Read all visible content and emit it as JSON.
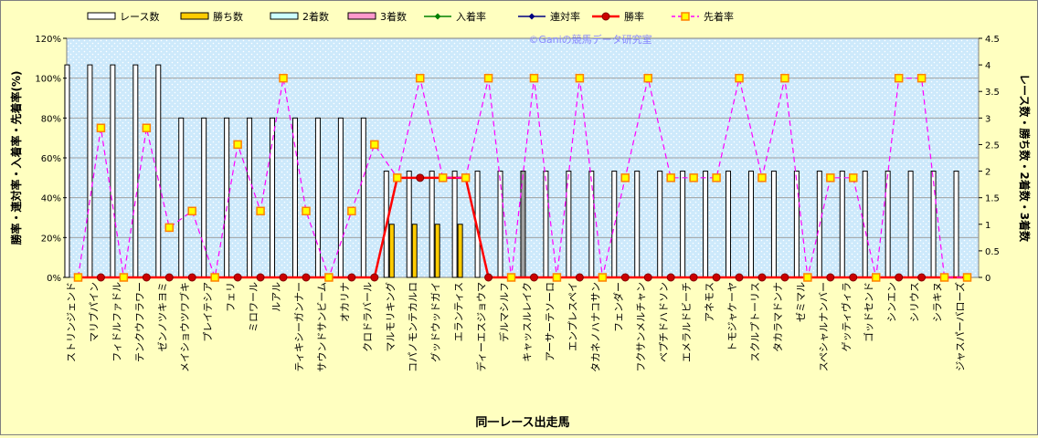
{
  "watermark": "©Ganiの競馬データ研究室",
  "chart_data": {
    "type": "bar",
    "xlabel": "同一レース出走馬",
    "ylabel_left": "勝率・連対率・入着率・先着率(%)",
    "ylabel_right": "レース数・勝ち数・2着数・3着数",
    "ylim_left": [
      0,
      120
    ],
    "yticks_left": [
      "0%",
      "20%",
      "40%",
      "60%",
      "80%",
      "100%",
      "120%"
    ],
    "ylim_right": [
      0,
      4.5
    ],
    "yticks_right": [
      "0",
      "0.5",
      "1",
      "1.5",
      "2",
      "2.5",
      "3",
      "3.5",
      "4",
      "4.5"
    ],
    "grid": true,
    "legend_position": "top",
    "colors": {
      "races": "#ffffff",
      "wins": "#ffcc00",
      "second": "#ccffff",
      "third": "#ff99cc",
      "place_rate": "#008000",
      "quinella_rate": "#000080",
      "win_rate": "#ff0000",
      "win_rate_marker": "#cc0000",
      "lead_rate": "#ff00ff",
      "lead_marker_fill": "#ffff00",
      "lead_marker_edge": "#ff8000",
      "plot_bg": "#ccecff"
    },
    "categories": [
      "ストリンジェンド",
      "マリブパイン",
      "フィドルファドル",
      "テンクウフラワー",
      "ゼンノツキヨミ",
      "メイショウツワブキ",
      "プレイテシア",
      "フェリ",
      "ミロワール",
      "ルアル",
      "ティキシーガンナー",
      "サウンドサンビーム",
      "オカリナ",
      "クロドラバール",
      "マルモリキング",
      "コパノモンテカルロ",
      "グッドウッドガイ",
      "エランティス",
      "ディーエスジョウマ",
      "デルマシルフ",
      "キャッスルレイク",
      "アーサーテソーロ",
      "エンプレスペイ",
      "タカネノハナコサン",
      "フェンダー",
      "フクサンメルチャン",
      "ベプチドハドソン",
      "エメラルドビーチ",
      "アネモス",
      "トモジャケーヤ",
      "スクルプトーリス",
      "タカラマドンナ",
      "ゼミマル",
      "スペシャルナンバー",
      "ゲッティヴィラ",
      "ゴッドセンド",
      "シンエン",
      "シリウス",
      "シラキヌ",
      "ジャスパーバローズ"
    ],
    "series": [
      {
        "name": "レース数",
        "axis": "right",
        "kind": "bar",
        "values": [
          4,
          4,
          4,
          4,
          4,
          3,
          3,
          3,
          3,
          3,
          3,
          3,
          3,
          3,
          2,
          2,
          2,
          2,
          2,
          2,
          2,
          2,
          2,
          2,
          2,
          2,
          2,
          2,
          2,
          2,
          2,
          2,
          2,
          2,
          2,
          2,
          2,
          2,
          2,
          2
        ]
      },
      {
        "name": "勝ち数",
        "axis": "right",
        "kind": "bar",
        "values": [
          0,
          0,
          0,
          0,
          0,
          0,
          0,
          0,
          0,
          0,
          0,
          0,
          0,
          0,
          1,
          1,
          1,
          1,
          0,
          0,
          0,
          0,
          0,
          0,
          0,
          0,
          0,
          0,
          0,
          0,
          0,
          0,
          0,
          0,
          0,
          0,
          0,
          0,
          0,
          0
        ]
      },
      {
        "name": "2着数",
        "axis": "right",
        "kind": "bar",
        "values": [
          0,
          0,
          0,
          0,
          0,
          0,
          0,
          0,
          0,
          0,
          0,
          0,
          0,
          0,
          0,
          0,
          0,
          0,
          0,
          0,
          0,
          0,
          0,
          0,
          0,
          0,
          0,
          0,
          0,
          0,
          0,
          0,
          0,
          0,
          0,
          0,
          0,
          0,
          0,
          0
        ]
      },
      {
        "name": "3着数",
        "axis": "right",
        "kind": "bar",
        "values": [
          0,
          0,
          0,
          0,
          0,
          0,
          0,
          0,
          0,
          0,
          0,
          0,
          0,
          0,
          0,
          0,
          0,
          0,
          0,
          0,
          0,
          0,
          0,
          0,
          0,
          0,
          0,
          0,
          0,
          0,
          0,
          0,
          0,
          0,
          0,
          0,
          0,
          0,
          0,
          0
        ]
      },
      {
        "name": "入着率",
        "axis": "left",
        "kind": "line",
        "values": [
          0,
          0,
          0,
          0,
          0,
          0,
          0,
          0,
          0,
          0,
          0,
          0,
          0,
          0,
          50,
          50,
          50,
          50,
          0,
          0,
          0,
          0,
          0,
          0,
          0,
          0,
          0,
          0,
          0,
          0,
          0,
          0,
          0,
          0,
          0,
          0,
          0,
          0,
          0,
          0
        ]
      },
      {
        "name": "連対率",
        "axis": "left",
        "kind": "line",
        "values": [
          0,
          0,
          0,
          0,
          0,
          0,
          0,
          0,
          0,
          0,
          0,
          0,
          0,
          0,
          50,
          50,
          50,
          50,
          0,
          0,
          0,
          0,
          0,
          0,
          0,
          0,
          0,
          0,
          0,
          0,
          0,
          0,
          0,
          0,
          0,
          0,
          0,
          0,
          0,
          0
        ]
      },
      {
        "name": "勝率",
        "axis": "left",
        "kind": "line",
        "values": [
          0,
          0,
          0,
          0,
          0,
          0,
          0,
          0,
          0,
          0,
          0,
          0,
          0,
          0,
          50,
          50,
          50,
          50,
          0,
          0,
          0,
          0,
          0,
          0,
          0,
          0,
          0,
          0,
          0,
          0,
          0,
          0,
          0,
          0,
          0,
          0,
          0,
          0,
          0,
          0
        ]
      },
      {
        "name": "先着率",
        "axis": "left",
        "kind": "line",
        "values": [
          0,
          75,
          0,
          75,
          25,
          33.3,
          0,
          66.7,
          33.3,
          100,
          33.3,
          0,
          33.3,
          66.7,
          50,
          100,
          50,
          50,
          100,
          0,
          100,
          0,
          100,
          0,
          50,
          100,
          50,
          50,
          50,
          100,
          50,
          100,
          0,
          50,
          50,
          0,
          100,
          100,
          0,
          0
        ]
      }
    ]
  }
}
